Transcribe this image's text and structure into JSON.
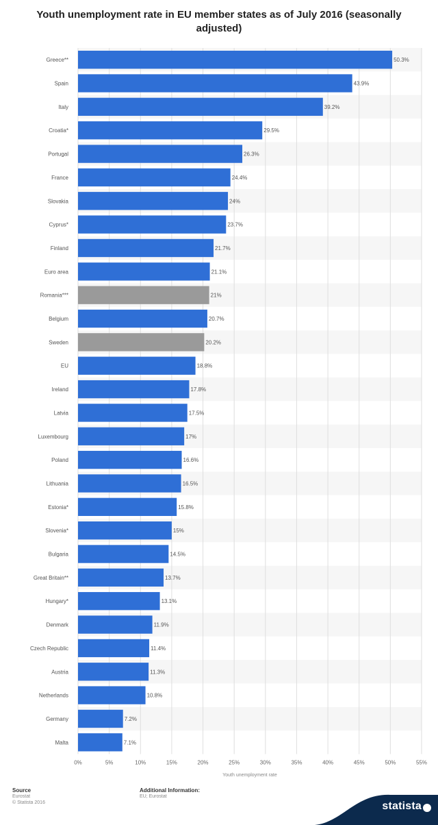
{
  "chart_data": {
    "type": "bar",
    "orientation": "horizontal",
    "title": "Youth unemployment rate in EU member states as of July 2016 (seasonally adjusted)",
    "xlabel": "Youth unemployment rate",
    "ylabel": "",
    "xlim": [
      0,
      55
    ],
    "ticks": [
      0,
      5,
      10,
      15,
      20,
      25,
      30,
      35,
      40,
      45,
      50,
      55
    ],
    "tick_labels": [
      "0%",
      "5%",
      "10%",
      "15%",
      "20%",
      "25%",
      "30%",
      "35%",
      "40%",
      "45%",
      "50%",
      "55%"
    ],
    "grid": true,
    "colors": {
      "default": "#2f6fd6",
      "highlight": "#9a9a9a"
    },
    "categories": [
      "Greece**",
      "Spain",
      "Italy",
      "Croatia*",
      "Portugal",
      "France",
      "Slovakia",
      "Cyprus*",
      "Finland",
      "Euro area",
      "Romania***",
      "Belgium",
      "Sweden",
      "EU",
      "Ireland",
      "Latvia",
      "Luxembourg",
      "Poland",
      "Lithuania",
      "Estonia*",
      "Slovenia*",
      "Bulgaria",
      "Great Britain**",
      "Hungary*",
      "Denmark",
      "Czech Republic",
      "Austria",
      "Netherlands",
      "Germany",
      "Malta"
    ],
    "values": [
      50.3,
      43.9,
      39.2,
      29.5,
      26.3,
      24.4,
      24,
      23.7,
      21.7,
      21.1,
      21,
      20.7,
      20.2,
      18.8,
      17.8,
      17.5,
      17,
      16.6,
      16.5,
      15.8,
      15,
      14.5,
      13.7,
      13.1,
      11.9,
      11.4,
      11.3,
      10.8,
      7.2,
      7.1
    ],
    "value_labels": [
      "50.3%",
      "43.9%",
      "39.2%",
      "29.5%",
      "26.3%",
      "24.4%",
      "24%",
      "23.7%",
      "21.7%",
      "21.1%",
      "21%",
      "20.7%",
      "20.2%",
      "18.8%",
      "17.8%",
      "17.5%",
      "17%",
      "16.6%",
      "16.5%",
      "15.8%",
      "15%",
      "14.5%",
      "13.7%",
      "13.1%",
      "11.9%",
      "11.4%",
      "11.3%",
      "10.8%",
      "7.2%",
      "7.1%"
    ],
    "highlighted": [
      "Romania***",
      "Sweden"
    ]
  },
  "footer": {
    "source_heading": "Source",
    "source_lines": [
      "Eurostat",
      "© Statista 2016"
    ],
    "info_heading": "Additional Information:",
    "info_text": "EU; Eurostat"
  },
  "brand": {
    "name": "statista",
    "color": "#0c2a4d"
  }
}
